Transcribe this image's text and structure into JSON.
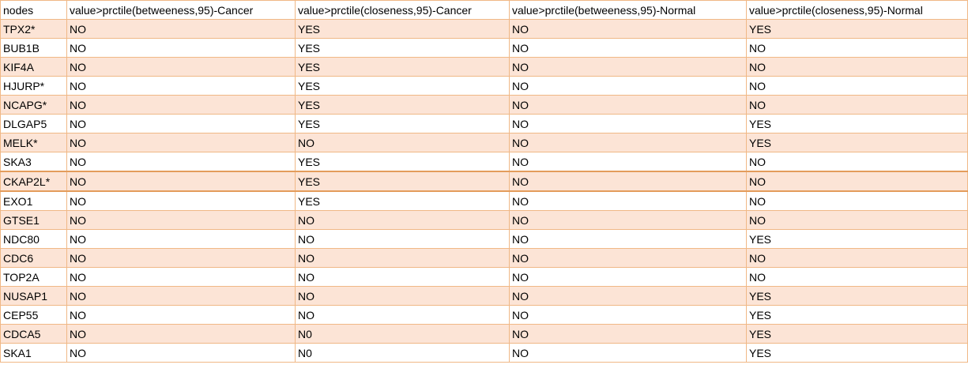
{
  "table": {
    "headers": [
      "nodes",
      "value>prctile(betweeness,95)-Cancer",
      "value>prctile(closeness,95)-Cancer",
      "value>prctile(betweeness,95)-Normal",
      "value>prctile(closeness,95)-Normal"
    ],
    "rows": [
      [
        "TPX2*",
        "NO",
        "YES",
        "NO",
        "YES"
      ],
      [
        "BUB1B",
        "NO",
        "YES",
        "NO",
        "NO"
      ],
      [
        "KIF4A",
        "NO",
        "YES",
        "NO",
        "NO"
      ],
      [
        "HJURP*",
        "NO",
        "YES",
        "NO",
        "NO"
      ],
      [
        "NCAPG*",
        "NO",
        "YES",
        "NO",
        "NO"
      ],
      [
        "DLGAP5",
        "NO",
        "YES",
        "NO",
        "YES"
      ],
      [
        "MELK*",
        "NO",
        "NO",
        "NO",
        "YES"
      ],
      [
        "SKA3",
        "NO",
        "YES",
        "NO",
        "NO"
      ],
      [
        "CKAP2L*",
        "NO",
        "YES",
        "NO",
        "NO"
      ],
      [
        "EXO1",
        "NO",
        "YES",
        "NO",
        "NO"
      ],
      [
        "GTSE1",
        "NO",
        "NO",
        "NO",
        "NO"
      ],
      [
        "NDC80",
        "NO",
        "NO",
        "NO",
        "YES"
      ],
      [
        "CDC6",
        "NO",
        "NO",
        "NO",
        "NO"
      ],
      [
        "TOP2A",
        "NO",
        "NO",
        "NO",
        "NO"
      ],
      [
        "NUSAP1",
        "NO",
        "NO",
        "NO",
        "YES"
      ],
      [
        "CEP55",
        "NO",
        "NO",
        "NO",
        "YES"
      ],
      [
        "CDCA5",
        "NO",
        "N0",
        "NO",
        "YES"
      ],
      [
        "SKA1",
        "NO",
        "N0",
        "NO",
        "YES"
      ]
    ],
    "colors": {
      "band": "#fce4d6",
      "border": "#f0b886",
      "highlight_border": "#e39c5c"
    }
  }
}
